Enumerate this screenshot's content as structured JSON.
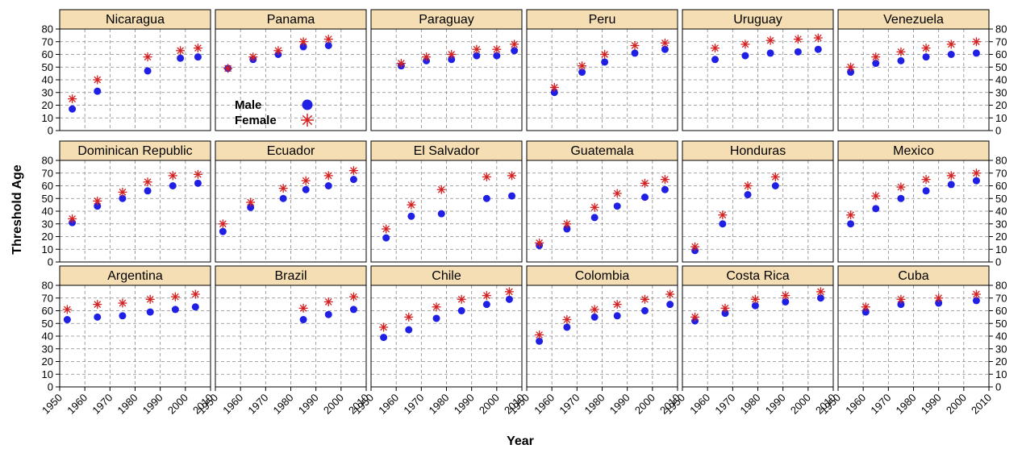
{
  "colors": {
    "male": "#1f1fe6",
    "female": "#d42020",
    "strip_bg": "#f5deb3",
    "grid": "#888888"
  },
  "chart_data": {
    "type": "scatter",
    "xlabel": "Year",
    "ylabel": "Threshold Age",
    "xlim": [
      1950,
      2010
    ],
    "ylim": [
      0,
      80
    ],
    "x_ticks": [
      1950,
      1960,
      1970,
      1980,
      1990,
      2000,
      2010
    ],
    "y_ticks": [
      0,
      10,
      20,
      30,
      40,
      50,
      60,
      70,
      80
    ],
    "grid": true,
    "legend": {
      "panel": "Panama",
      "entries": [
        {
          "label": "Male",
          "series": "male"
        },
        {
          "label": "Female",
          "series": "female"
        }
      ]
    },
    "panels": [
      {
        "name": "Nicaragua",
        "row": 0,
        "col": 0,
        "male": [
          [
            1955,
            17
          ],
          [
            1965,
            31
          ],
          [
            1985,
            47
          ],
          [
            1998,
            57
          ],
          [
            2005,
            58
          ]
        ],
        "female": [
          [
            1955,
            25
          ],
          [
            1965,
            40
          ],
          [
            1985,
            58
          ],
          [
            1998,
            63
          ],
          [
            2005,
            65
          ]
        ]
      },
      {
        "name": "Panama",
        "row": 0,
        "col": 1,
        "male": [
          [
            1955,
            49
          ],
          [
            1965,
            56
          ],
          [
            1975,
            60
          ],
          [
            1985,
            66
          ],
          [
            1995,
            67
          ]
        ],
        "female": [
          [
            1955,
            49
          ],
          [
            1965,
            58
          ],
          [
            1975,
            63
          ],
          [
            1985,
            70
          ],
          [
            1995,
            72
          ]
        ]
      },
      {
        "name": "Paraguay",
        "row": 0,
        "col": 2,
        "male": [
          [
            1962,
            51
          ],
          [
            1972,
            55
          ],
          [
            1982,
            56
          ],
          [
            1992,
            59
          ],
          [
            2000,
            59
          ],
          [
            2007,
            63
          ]
        ],
        "female": [
          [
            1962,
            53
          ],
          [
            1972,
            58
          ],
          [
            1982,
            60
          ],
          [
            1992,
            64
          ],
          [
            2000,
            64
          ],
          [
            2007,
            68
          ]
        ]
      },
      {
        "name": "Peru",
        "row": 0,
        "col": 3,
        "male": [
          [
            1961,
            30
          ],
          [
            1972,
            46
          ],
          [
            1981,
            54
          ],
          [
            1993,
            61
          ],
          [
            2005,
            64
          ]
        ],
        "female": [
          [
            1961,
            34
          ],
          [
            1972,
            51
          ],
          [
            1981,
            60
          ],
          [
            1993,
            67
          ],
          [
            2005,
            69
          ]
        ]
      },
      {
        "name": "Uruguay",
        "row": 0,
        "col": 4,
        "male": [
          [
            1963,
            56
          ],
          [
            1975,
            59
          ],
          [
            1985,
            61
          ],
          [
            1996,
            62
          ],
          [
            2004,
            64
          ]
        ],
        "female": [
          [
            1963,
            65
          ],
          [
            1975,
            68
          ],
          [
            1985,
            71
          ],
          [
            1996,
            72
          ],
          [
            2004,
            73
          ]
        ]
      },
      {
        "name": "Venezuela",
        "row": 0,
        "col": 5,
        "male": [
          [
            1955,
            46
          ],
          [
            1965,
            53
          ],
          [
            1975,
            55
          ],
          [
            1985,
            58
          ],
          [
            1995,
            60
          ],
          [
            2005,
            61
          ]
        ],
        "female": [
          [
            1955,
            50
          ],
          [
            1965,
            58
          ],
          [
            1975,
            62
          ],
          [
            1985,
            65
          ],
          [
            1995,
            68
          ],
          [
            2005,
            70
          ]
        ]
      },
      {
        "name": "Dominican Republic",
        "row": 1,
        "col": 0,
        "male": [
          [
            1955,
            31
          ],
          [
            1965,
            44
          ],
          [
            1975,
            50
          ],
          [
            1985,
            56
          ],
          [
            1995,
            60
          ],
          [
            2005,
            62
          ]
        ],
        "female": [
          [
            1955,
            34
          ],
          [
            1965,
            48
          ],
          [
            1975,
            55
          ],
          [
            1985,
            63
          ],
          [
            1995,
            68
          ],
          [
            2005,
            69
          ]
        ]
      },
      {
        "name": "Ecuador",
        "row": 1,
        "col": 1,
        "male": [
          [
            1953,
            24
          ],
          [
            1964,
            43
          ],
          [
            1977,
            50
          ],
          [
            1986,
            57
          ],
          [
            1995,
            60
          ],
          [
            2005,
            65
          ]
        ],
        "female": [
          [
            1953,
            30
          ],
          [
            1964,
            47
          ],
          [
            1977,
            58
          ],
          [
            1986,
            64
          ],
          [
            1995,
            68
          ],
          [
            2005,
            72
          ]
        ]
      },
      {
        "name": "El Salvador",
        "row": 1,
        "col": 2,
        "male": [
          [
            1956,
            19
          ],
          [
            1966,
            36
          ],
          [
            1978,
            38
          ],
          [
            1996,
            50
          ],
          [
            2006,
            52
          ]
        ],
        "female": [
          [
            1956,
            26
          ],
          [
            1966,
            45
          ],
          [
            1978,
            57
          ],
          [
            1996,
            67
          ],
          [
            2006,
            68
          ]
        ]
      },
      {
        "name": "Guatemala",
        "row": 1,
        "col": 3,
        "male": [
          [
            1955,
            13
          ],
          [
            1966,
            26
          ],
          [
            1977,
            35
          ],
          [
            1986,
            44
          ],
          [
            1997,
            51
          ],
          [
            2005,
            57
          ]
        ],
        "female": [
          [
            1955,
            15
          ],
          [
            1966,
            30
          ],
          [
            1977,
            43
          ],
          [
            1986,
            54
          ],
          [
            1997,
            62
          ],
          [
            2005,
            65
          ]
        ]
      },
      {
        "name": "Honduras",
        "row": 1,
        "col": 4,
        "male": [
          [
            1955,
            9
          ],
          [
            1966,
            30
          ],
          [
            1976,
            53
          ],
          [
            1987,
            60
          ]
        ],
        "female": [
          [
            1955,
            12
          ],
          [
            1966,
            37
          ],
          [
            1976,
            60
          ],
          [
            1987,
            67
          ]
        ]
      },
      {
        "name": "Mexico",
        "row": 1,
        "col": 5,
        "male": [
          [
            1955,
            30
          ],
          [
            1965,
            42
          ],
          [
            1975,
            50
          ],
          [
            1985,
            56
          ],
          [
            1995,
            61
          ],
          [
            2005,
            64
          ]
        ],
        "female": [
          [
            1955,
            37
          ],
          [
            1965,
            52
          ],
          [
            1975,
            59
          ],
          [
            1985,
            65
          ],
          [
            1995,
            68
          ],
          [
            2005,
            70
          ]
        ]
      },
      {
        "name": "Argentina",
        "row": 2,
        "col": 0,
        "male": [
          [
            1953,
            53
          ],
          [
            1965,
            55
          ],
          [
            1975,
            56
          ],
          [
            1986,
            59
          ],
          [
            1996,
            61
          ],
          [
            2004,
            63
          ]
        ],
        "female": [
          [
            1953,
            61
          ],
          [
            1965,
            65
          ],
          [
            1975,
            66
          ],
          [
            1986,
            69
          ],
          [
            1996,
            71
          ],
          [
            2004,
            73
          ]
        ]
      },
      {
        "name": "Brazil",
        "row": 2,
        "col": 1,
        "male": [
          [
            1985,
            53
          ],
          [
            1995,
            57
          ],
          [
            2005,
            61
          ]
        ],
        "female": [
          [
            1985,
            62
          ],
          [
            1995,
            67
          ],
          [
            2005,
            71
          ]
        ]
      },
      {
        "name": "Chile",
        "row": 2,
        "col": 2,
        "male": [
          [
            1955,
            39
          ],
          [
            1965,
            45
          ],
          [
            1976,
            54
          ],
          [
            1986,
            60
          ],
          [
            1996,
            65
          ],
          [
            2005,
            69
          ]
        ],
        "female": [
          [
            1955,
            47
          ],
          [
            1965,
            55
          ],
          [
            1976,
            63
          ],
          [
            1986,
            69
          ],
          [
            1996,
            72
          ],
          [
            2005,
            75
          ]
        ]
      },
      {
        "name": "Colombia",
        "row": 2,
        "col": 3,
        "male": [
          [
            1955,
            36
          ],
          [
            1966,
            47
          ],
          [
            1977,
            55
          ],
          [
            1986,
            56
          ],
          [
            1997,
            60
          ],
          [
            2007,
            65
          ]
        ],
        "female": [
          [
            1955,
            41
          ],
          [
            1966,
            53
          ],
          [
            1977,
            61
          ],
          [
            1986,
            65
          ],
          [
            1997,
            69
          ],
          [
            2007,
            73
          ]
        ]
      },
      {
        "name": "Costa Rica",
        "row": 2,
        "col": 4,
        "male": [
          [
            1955,
            52
          ],
          [
            1967,
            58
          ],
          [
            1979,
            64
          ],
          [
            1991,
            67
          ],
          [
            2005,
            70
          ]
        ],
        "female": [
          [
            1955,
            55
          ],
          [
            1967,
            62
          ],
          [
            1979,
            69
          ],
          [
            1991,
            72
          ],
          [
            2005,
            75
          ]
        ]
      },
      {
        "name": "Cuba",
        "row": 2,
        "col": 5,
        "male": [
          [
            1961,
            59
          ],
          [
            1975,
            65
          ],
          [
            1990,
            66
          ],
          [
            2005,
            68
          ]
        ],
        "female": [
          [
            1961,
            63
          ],
          [
            1975,
            69
          ],
          [
            1990,
            70
          ],
          [
            2005,
            73
          ]
        ]
      }
    ]
  }
}
